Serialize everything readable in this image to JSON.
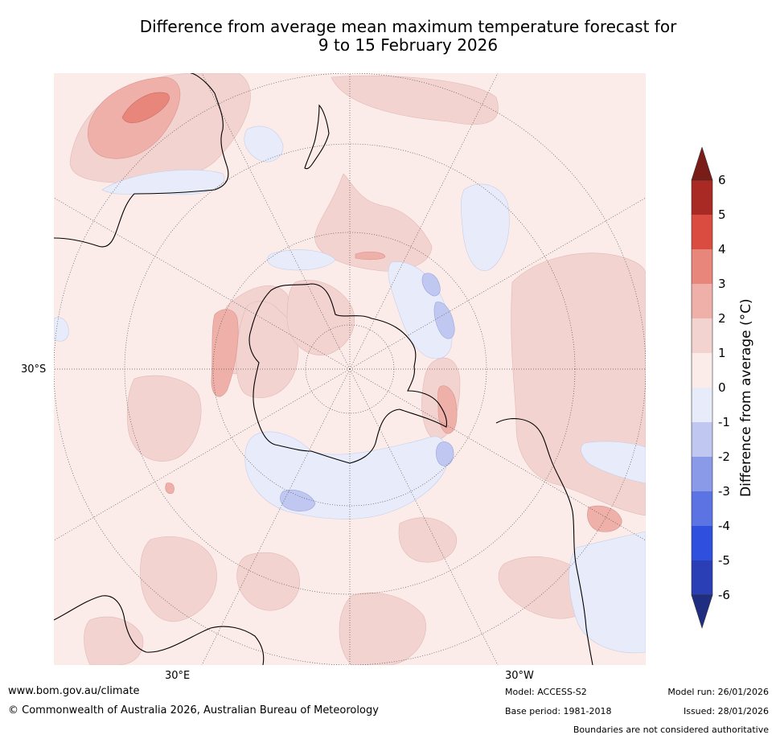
{
  "title_line1": "Difference from average mean maximum temperature forecast for",
  "title_line2": "9 to 15 February 2026",
  "map": {
    "projection": "South polar stereographic",
    "lat_label": "30°S",
    "lon_labels": [
      "30°E",
      "30°W"
    ]
  },
  "colorbar": {
    "title": "Difference from average (°C)",
    "ticks": [
      "6",
      "5",
      "4",
      "3",
      "2",
      "1",
      "0",
      "-1",
      "-2",
      "-3",
      "-4",
      "-5",
      "-6"
    ],
    "colors": {
      "gt6": "#7a1c18",
      "5_6": "#a92a25",
      "4_5": "#d94c3f",
      "3_4": "#e8867b",
      "2_3": "#eeb0a9",
      "1_2": "#f3d3d0",
      "0_1": "#fbecea",
      "m1_0": "#e8ecfa",
      "m2_m1": "#c0c8f2",
      "m3_m2": "#8a9ae9",
      "m4_m3": "#5b73e3",
      "m5_m4": "#2f4fdf",
      "m6_m5": "#2a3fb5",
      "lt_m6": "#1f2e80"
    }
  },
  "footer": {
    "website": "www.bom.gov.au/climate",
    "copyright": "© Commonwealth of Australia 2026, Australian Bureau of Meteorology",
    "model": "Model: ACCESS-S2",
    "base_period": "Base period: 1981-2018",
    "model_run": "Model run: 26/01/2026",
    "issued": "Issued: 28/01/2026",
    "disclaimer": "Boundaries are not considered authoritative"
  }
}
